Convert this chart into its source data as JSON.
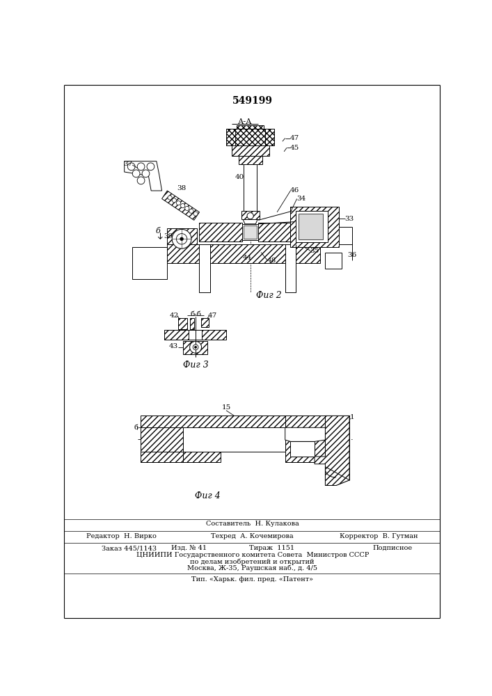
{
  "patent_number": "549199",
  "background_color": "#ffffff",
  "fig_width": 7.07,
  "fig_height": 10.0,
  "footer_sestavitel": "Составитель  Н. Кулакова",
  "footer_redaktor": "Редактор  Н. Вирко",
  "footer_tehred": "Техред  А. Кочемирова",
  "footer_korrektor": "Корректор  В. Гутман",
  "footer_zakaz": "Заказ 445/1143",
  "footer_izd": "Изд. № 41",
  "footer_tirazh": "Тираж  1151",
  "footer_podpisnoe": "Подписное",
  "footer_tsniipi": "ЦНИИПИ Государственного комитета Совета  Министров СССР",
  "footer_line5": "по делам изобретений и открытий",
  "footer_line6": "Москва, Ж-35, Раушская наб., д. 4/5",
  "footer_line7": "Тип. «Харьк. фил. пред. «Патент»",
  "label_fig2": "Фиг 2",
  "label_fig3": "Фиг 3",
  "label_fig4": "Фиг 4",
  "label_aa": "А-А"
}
